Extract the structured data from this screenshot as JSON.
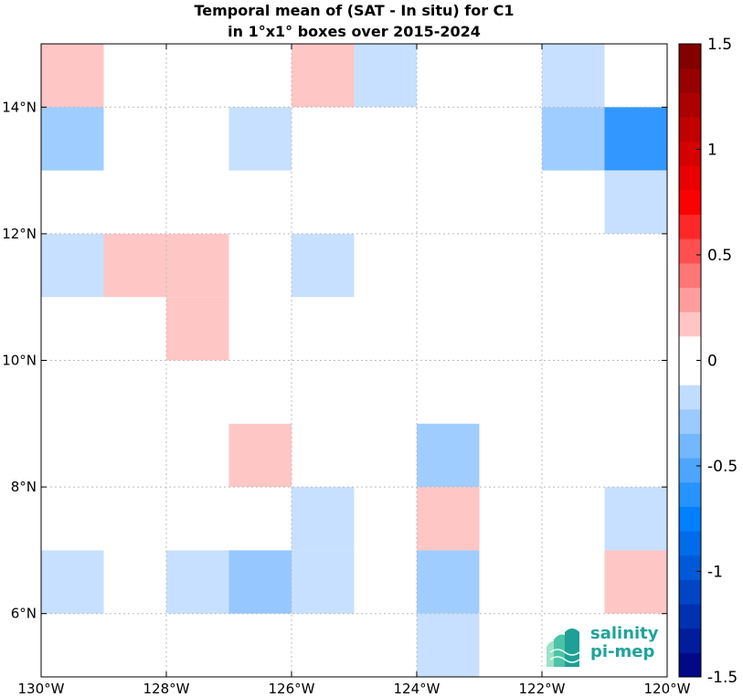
{
  "chart_data": {
    "type": "heatmap",
    "title_line1": "Temporal mean of (SAT - In situ) for C1",
    "title_line2": "in 1°x1° boxes over 2015-2024",
    "x_ticks": [
      {
        "value": -130,
        "label": "130°W"
      },
      {
        "value": -128,
        "label": "128°W"
      },
      {
        "value": -126,
        "label": "126°W"
      },
      {
        "value": -124,
        "label": "124°W"
      },
      {
        "value": -122,
        "label": "122°W"
      },
      {
        "value": -120,
        "label": "120°W"
      }
    ],
    "y_ticks": [
      {
        "value": 6,
        "label": "6°N"
      },
      {
        "value": 8,
        "label": "8°N"
      },
      {
        "value": 10,
        "label": "10°N"
      },
      {
        "value": 12,
        "label": "12°N"
      },
      {
        "value": 14,
        "label": "14°N"
      }
    ],
    "xlim": [
      -130,
      -120
    ],
    "ylim": [
      5,
      15
    ],
    "grid": true,
    "colorbar": {
      "range": [
        -1.5,
        1.5
      ],
      "levels": 26,
      "tick_labels": [
        {
          "value": 1.5,
          "label": "1.5"
        },
        {
          "value": 1,
          "label": "1"
        },
        {
          "value": 0.5,
          "label": "0.5"
        },
        {
          "value": 0,
          "label": "0"
        },
        {
          "value": -0.5,
          "label": "-0.5"
        },
        {
          "value": -1,
          "label": "-1"
        },
        {
          "value": -1.5,
          "label": "-1.5"
        }
      ]
    },
    "cells": [
      {
        "lon": -130,
        "lat": 14,
        "value": 0.17
      },
      {
        "lon": -126,
        "lat": 14,
        "value": 0.17
      },
      {
        "lon": -125,
        "lat": 14,
        "value": -0.15
      },
      {
        "lon": -122,
        "lat": 14,
        "value": -0.15
      },
      {
        "lon": -130,
        "lat": 13,
        "value": -0.27
      },
      {
        "lon": -127,
        "lat": 13,
        "value": -0.15
      },
      {
        "lon": -122,
        "lat": 13,
        "value": -0.27
      },
      {
        "lon": -121,
        "lat": 13,
        "value": -0.6
      },
      {
        "lon": -121,
        "lat": 12,
        "value": -0.15
      },
      {
        "lon": -130,
        "lat": 11,
        "value": -0.15
      },
      {
        "lon": -129,
        "lat": 11,
        "value": 0.17
      },
      {
        "lon": -128,
        "lat": 11,
        "value": 0.17
      },
      {
        "lon": -126,
        "lat": 11,
        "value": -0.15
      },
      {
        "lon": -128,
        "lat": 10,
        "value": 0.17
      },
      {
        "lon": -127,
        "lat": 8,
        "value": 0.17
      },
      {
        "lon": -124,
        "lat": 8,
        "value": -0.27
      },
      {
        "lon": -126,
        "lat": 7,
        "value": -0.15
      },
      {
        "lon": -124,
        "lat": 7,
        "value": 0.17
      },
      {
        "lon": -121,
        "lat": 7,
        "value": -0.15
      },
      {
        "lon": -130,
        "lat": 6,
        "value": -0.15
      },
      {
        "lon": -128,
        "lat": 6,
        "value": -0.15
      },
      {
        "lon": -127,
        "lat": 6,
        "value": -0.3
      },
      {
        "lon": -126,
        "lat": 6,
        "value": -0.15
      },
      {
        "lon": -124,
        "lat": 6,
        "value": -0.27
      },
      {
        "lon": -121,
        "lat": 6,
        "value": 0.17
      },
      {
        "lon": -124,
        "lat": 5,
        "value": -0.15
      }
    ]
  },
  "logo": {
    "line1": "salinity",
    "line2": "pi-mep"
  }
}
